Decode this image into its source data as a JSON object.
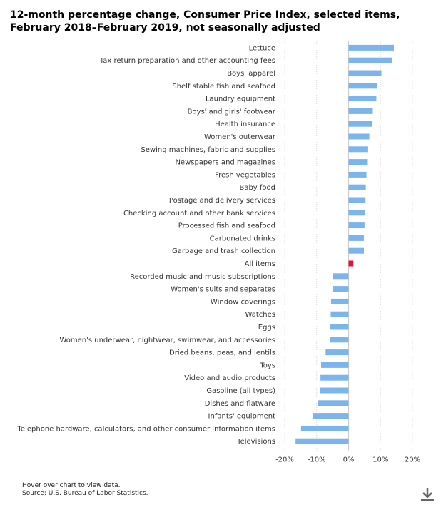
{
  "title": "12-month percentage change, Consumer Price Index, selected items, February 2018–February 2019, not seasonally adjusted",
  "footer": {
    "hint": "Hover over chart to view data.",
    "source": "Source: U.S. Bureau of Labor Statistics."
  },
  "download_icon": "download-icon",
  "colors": {
    "bar": "#7cb5ec",
    "highlight": "#e8112d",
    "grid": "#d8d8d8",
    "zero": "#cccccc"
  },
  "chart_data": {
    "type": "bar",
    "orientation": "horizontal",
    "title": "12-month percentage change, Consumer Price Index, selected items, February 2018–February 2019, not seasonally adjusted",
    "xlabel": "",
    "ylabel": "",
    "xlim": [
      -20,
      20
    ],
    "ticks": [
      -20,
      -10,
      0,
      10,
      20
    ],
    "tick_labels": [
      "-20%",
      "-10%",
      "0%",
      "10%",
      "20%"
    ],
    "grid": true,
    "highlight": "All items",
    "categories": [
      "Lettuce",
      "Tax return preparation and other accounting fees",
      "Boys' apparel",
      "Shelf stable fish and seafood",
      "Laundry equipment",
      "Boys' and girls' footwear",
      "Health insurance",
      "Women's outerwear",
      "Sewing machines, fabric and supplies",
      "Newspapers and magazines",
      "Fresh vegetables",
      "Baby food",
      "Postage and delivery services",
      "Checking account and other bank services",
      "Processed fish and seafood",
      "Carbonated drinks",
      "Garbage and trash collection",
      "All items",
      "Recorded music and music subscriptions",
      "Women's suits and separates",
      "Window coverings",
      "Watches",
      "Eggs",
      "Women's underwear, nightwear, swimwear, and accessories",
      "Dried beans, peas, and lentils",
      "Toys",
      "Video and audio products",
      "Gasoline (all types)",
      "Dishes and flatware",
      "Infants' equipment",
      "Telephone hardware, calculators, and other consumer information items",
      "Televisions"
    ],
    "values": [
      14.2,
      13.6,
      10.3,
      8.9,
      8.7,
      7.6,
      7.5,
      6.5,
      5.9,
      5.8,
      5.6,
      5.4,
      5.3,
      5.1,
      5.0,
      4.8,
      4.8,
      1.5,
      -4.9,
      -5.0,
      -5.5,
      -5.6,
      -5.8,
      -5.9,
      -7.2,
      -8.6,
      -8.8,
      -9.0,
      -9.7,
      -11.3,
      -14.9,
      -16.6
    ]
  }
}
